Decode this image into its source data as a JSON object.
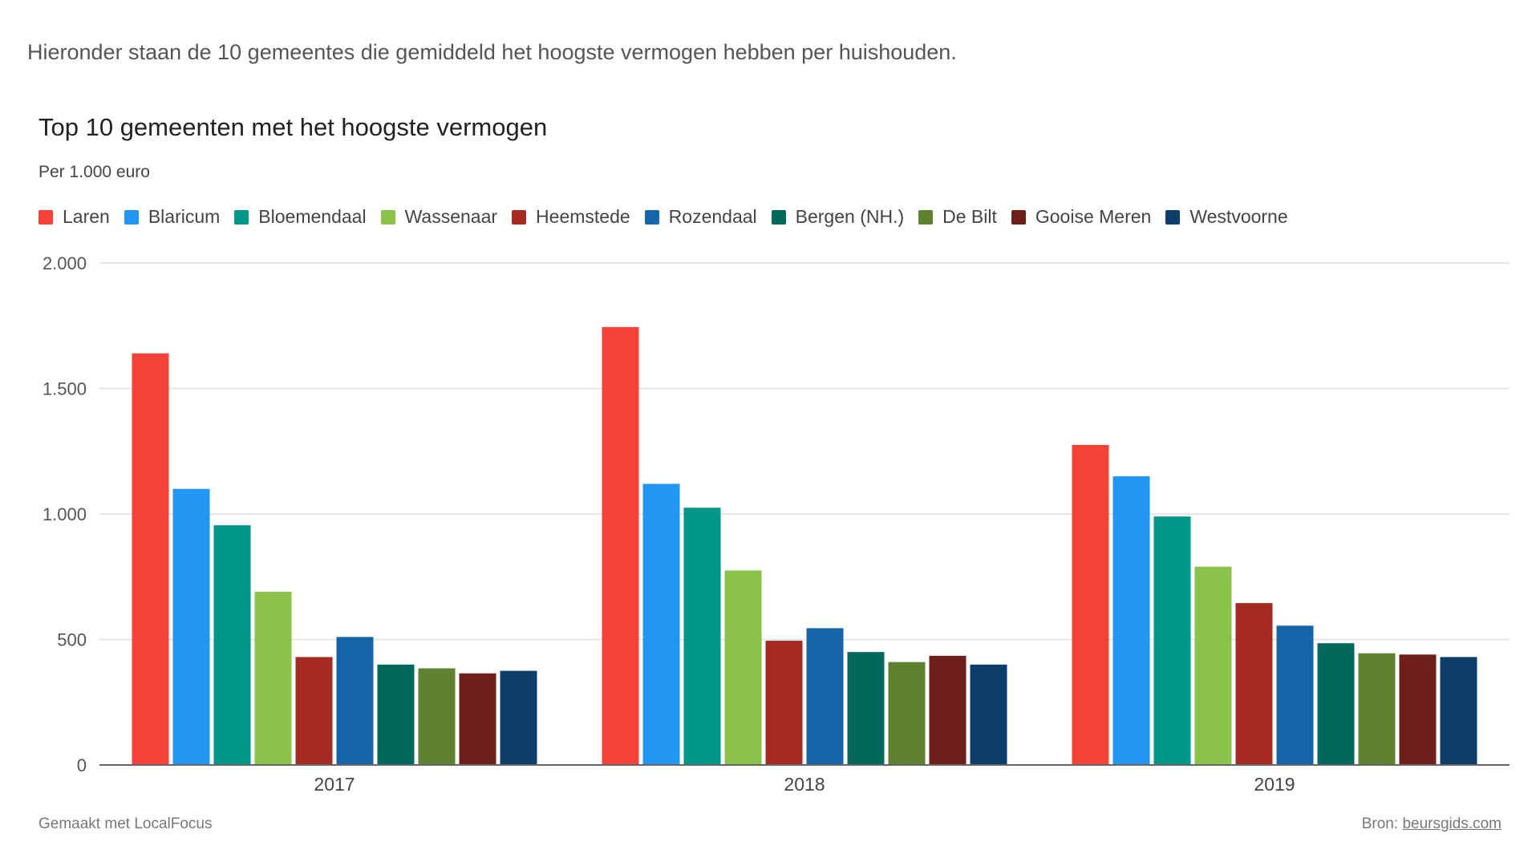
{
  "intro_text": "Hieronder staan de 10 gemeentes die gemiddeld het hoogste vermogen hebben per huishouden.",
  "chart_data": {
    "type": "bar",
    "title": "Top 10 gemeenten met het hoogste vermogen",
    "subtitle": "Per 1.000 euro",
    "categories": [
      "2017",
      "2018",
      "2019"
    ],
    "ylim": [
      0,
      2000
    ],
    "yticks": [
      0,
      500,
      1000,
      1500,
      2000
    ],
    "ytick_labels": [
      "0",
      "500",
      "1.000",
      "1.500",
      "2.000"
    ],
    "legend_position": "top-left",
    "grid": true,
    "series": [
      {
        "name": "Laren",
        "color": "#f44336",
        "values": [
          1640,
          1745,
          1275
        ]
      },
      {
        "name": "Blaricum",
        "color": "#2196f3",
        "values": [
          1100,
          1120,
          1150
        ]
      },
      {
        "name": "Bloemendaal",
        "color": "#009688",
        "values": [
          955,
          1025,
          990
        ]
      },
      {
        "name": "Wassenaar",
        "color": "#8bc34a",
        "values": [
          690,
          775,
          790
        ]
      },
      {
        "name": "Heemstede",
        "color": "#a52a22",
        "values": [
          430,
          495,
          645
        ]
      },
      {
        "name": "Rozendaal",
        "color": "#1565a8",
        "values": [
          510,
          545,
          555
        ]
      },
      {
        "name": "Bergen (NH.)",
        "color": "#00695c",
        "values": [
          400,
          450,
          485
        ]
      },
      {
        "name": "De Bilt",
        "color": "#5e8230",
        "values": [
          385,
          410,
          445
        ]
      },
      {
        "name": "Gooise Meren",
        "color": "#6d1f1a",
        "values": [
          365,
          435,
          440
        ]
      },
      {
        "name": "Westvoorne",
        "color": "#0d3d6b",
        "values": [
          375,
          400,
          430
        ]
      }
    ]
  },
  "footer": {
    "made_with": "Gemaakt met LocalFocus",
    "source_label": "Bron:",
    "source_link": "beursgids.com"
  }
}
